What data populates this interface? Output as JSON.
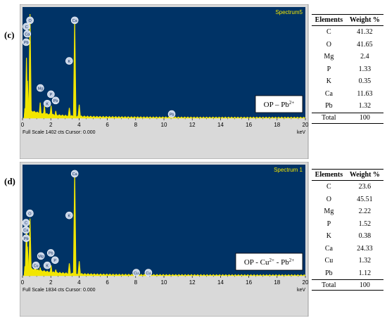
{
  "chart_data": [
    {
      "type": "bar",
      "panel_label": "(c)",
      "spectrum_name": "Spectrum5",
      "footer": "Full Scale 1402 cts Cursor: 0.000",
      "x_unit": "keV",
      "xlim": [
        0,
        20
      ],
      "x_ticks": [
        "0",
        "2",
        "4",
        "6",
        "8",
        "10",
        "12",
        "14",
        "16",
        "18",
        "20"
      ],
      "sample_label": "OP – Pb",
      "sample_sup": "2+",
      "peaks": [
        {
          "x": 0.28,
          "y": 0.58
        },
        {
          "x": 0.53,
          "y": 1.0
        },
        {
          "x": 0.35,
          "y": 0.36
        },
        {
          "x": 1.25,
          "y": 0.15
        },
        {
          "x": 1.55,
          "y": 0.12
        },
        {
          "x": 2.02,
          "y": 0.12
        },
        {
          "x": 2.35,
          "y": 0.07
        },
        {
          "x": 3.31,
          "y": 0.1
        },
        {
          "x": 3.69,
          "y": 0.94
        },
        {
          "x": 4.01,
          "y": 0.13
        },
        {
          "x": 10.55,
          "y": 0.03
        }
      ],
      "peak_markers": [
        {
          "label": "Ca",
          "x": 3.69,
          "y": 0.94
        },
        {
          "label": "O",
          "x": 0.53,
          "y": 0.94
        },
        {
          "label": "C",
          "x": 0.28,
          "y": 0.88
        },
        {
          "label": "Ca",
          "x": 0.34,
          "y": 0.81
        },
        {
          "label": "Pb",
          "x": 0.26,
          "y": 0.73
        },
        {
          "label": "K",
          "x": 3.3,
          "y": 0.55
        },
        {
          "label": "Mg",
          "x": 1.26,
          "y": 0.29
        },
        {
          "label": "P",
          "x": 2.01,
          "y": 0.23
        },
        {
          "label": "Pb",
          "x": 2.34,
          "y": 0.17
        },
        {
          "label": "K",
          "x": 1.75,
          "y": 0.14
        },
        {
          "label": "Pb",
          "x": 10.55,
          "y": 0.04
        }
      ],
      "table": {
        "headers": [
          "Elements",
          "Weight %"
        ],
        "rows": [
          [
            "C",
            "41.32"
          ],
          [
            "O",
            "41.65"
          ],
          [
            "Mg",
            "2.4"
          ],
          [
            "P",
            "1.33"
          ],
          [
            "K",
            "0.35"
          ],
          [
            "Ca",
            "11.63"
          ],
          [
            "Pb",
            "1.32"
          ]
        ],
        "total": [
          "Total",
          "100"
        ]
      }
    },
    {
      "type": "bar",
      "panel_label": "(d)",
      "spectrum_name": "Spectrum 1",
      "footer": "Full Scale 1834 cts Cursor: 0.000",
      "x_unit": "keV",
      "xlim": [
        0,
        20
      ],
      "x_ticks": [
        "0",
        "2",
        "4",
        "6",
        "8",
        "10",
        "12",
        "14",
        "16",
        "18",
        "20"
      ],
      "sample_label": "OP - Cu",
      "sample_sup": "2+",
      "sample_label_2": " - Pb",
      "sample_sup_2": "2+",
      "peaks": [
        {
          "x": 0.28,
          "y": 0.5
        },
        {
          "x": 0.53,
          "y": 0.55
        },
        {
          "x": 0.35,
          "y": 0.28
        },
        {
          "x": 0.93,
          "y": 0.08
        },
        {
          "x": 1.25,
          "y": 0.08
        },
        {
          "x": 2.02,
          "y": 0.1
        },
        {
          "x": 2.35,
          "y": 0.06
        },
        {
          "x": 3.31,
          "y": 0.12
        },
        {
          "x": 3.69,
          "y": 1.0
        },
        {
          "x": 4.01,
          "y": 0.14
        },
        {
          "x": 8.04,
          "y": 0.02
        },
        {
          "x": 8.9,
          "y": 0.02
        }
      ],
      "peak_markers": [
        {
          "label": "Ca",
          "x": 3.69,
          "y": 0.98
        },
        {
          "label": "K",
          "x": 3.3,
          "y": 0.58
        },
        {
          "label": "O",
          "x": 0.52,
          "y": 0.6
        },
        {
          "label": "C",
          "x": 0.25,
          "y": 0.51
        },
        {
          "label": "Ca",
          "x": 0.24,
          "y": 0.44
        },
        {
          "label": "Pb",
          "x": 0.26,
          "y": 0.36
        },
        {
          "label": "Mg",
          "x": 1.3,
          "y": 0.19
        },
        {
          "label": "Pb",
          "x": 2.0,
          "y": 0.22
        },
        {
          "label": "P",
          "x": 2.3,
          "y": 0.15
        },
        {
          "label": "K",
          "x": 1.75,
          "y": 0.1
        },
        {
          "label": "Cu",
          "x": 0.95,
          "y": 0.1
        },
        {
          "label": "Cu",
          "x": 8.04,
          "y": 0.03
        },
        {
          "label": "Cu",
          "x": 8.9,
          "y": 0.03
        }
      ],
      "table": {
        "headers": [
          "Elements",
          "Weight %"
        ],
        "rows": [
          [
            "C",
            "23.6"
          ],
          [
            "O",
            "45.51"
          ],
          [
            "Mg",
            "2.22"
          ],
          [
            "P",
            "1.52"
          ],
          [
            "K",
            "0.38"
          ],
          [
            "Ca",
            "24.33"
          ],
          [
            "Cu",
            "1.32"
          ],
          [
            "Pb",
            "1.12"
          ]
        ],
        "total": [
          "Total",
          "100"
        ]
      }
    }
  ]
}
